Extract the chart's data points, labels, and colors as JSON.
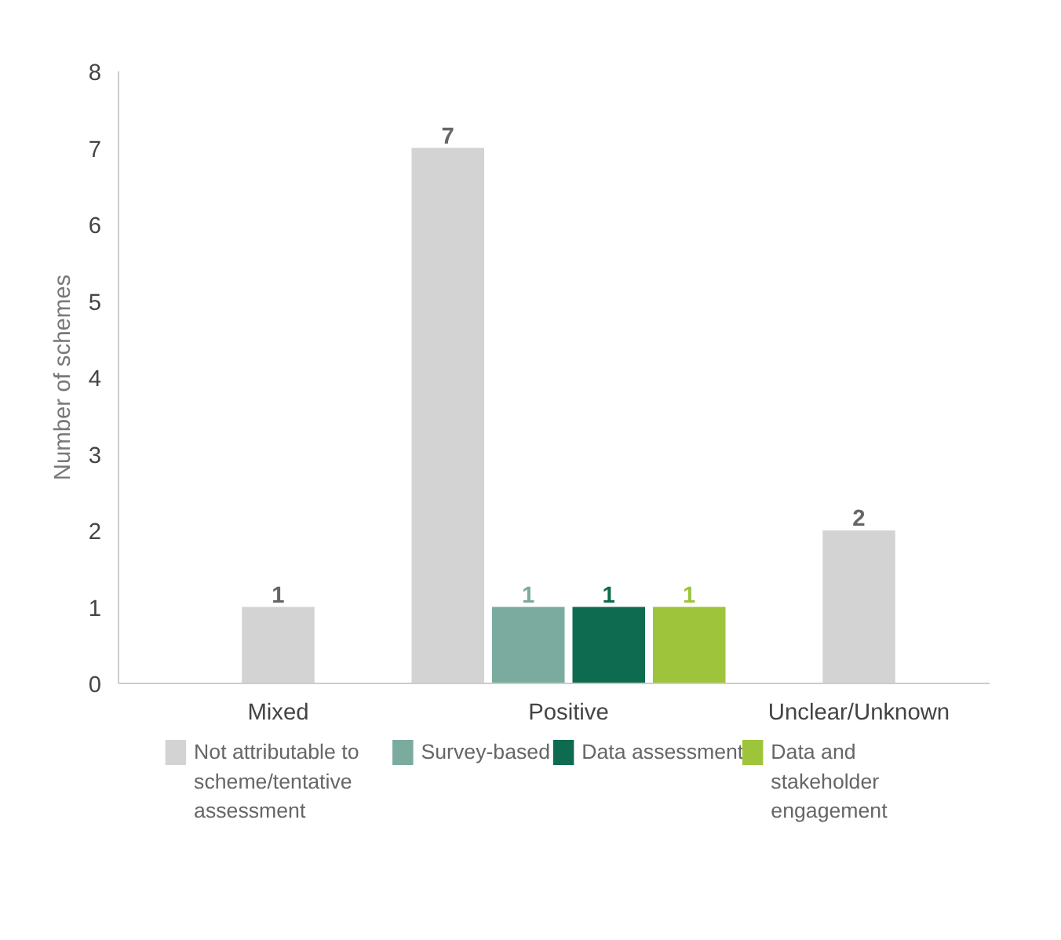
{
  "chart_data": {
    "type": "bar",
    "ylabel": "Number of schemes",
    "categories": [
      "Mixed",
      "Positive",
      "Unclear/Unknown"
    ],
    "series": [
      {
        "name": "Not attributable to scheme/tentative assessment",
        "color": "#d3d3d3",
        "values": [
          1,
          7,
          2
        ]
      },
      {
        "name": "Survey-based",
        "color": "#7aab9e",
        "values": [
          null,
          1,
          null
        ]
      },
      {
        "name": "Data assessment",
        "color": "#0e6b4f",
        "values": [
          null,
          1,
          null
        ]
      },
      {
        "name": "Data and stakeholder engagement",
        "color": "#9dc43b",
        "values": [
          null,
          1,
          null
        ]
      }
    ],
    "ylim": [
      0,
      8
    ],
    "yticks": [
      0,
      1,
      2,
      3,
      4,
      5,
      6,
      7,
      8
    ],
    "grid": false,
    "legend": "bottom",
    "data_labels": true
  }
}
